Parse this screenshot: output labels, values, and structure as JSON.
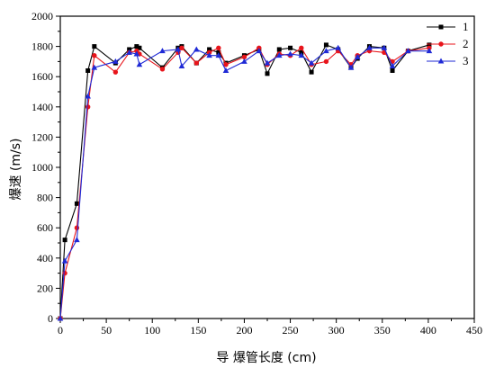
{
  "chart_data": {
    "type": "line",
    "xlabel": "导 爆管长度 (cm)",
    "ylabel": "爆速  (m/s)",
    "xlim": [
      0,
      450
    ],
    "ylim": [
      0,
      2000
    ],
    "xticks": [
      0,
      50,
      100,
      150,
      200,
      250,
      300,
      350,
      400,
      450
    ],
    "yticks": [
      0,
      200,
      400,
      600,
      800,
      1000,
      1200,
      1400,
      1600,
      1800,
      2000
    ],
    "grid": false,
    "legend_position": "top-right",
    "series": [
      {
        "name": "1",
        "color": "#000000",
        "marker": "square",
        "points": [
          [
            0,
            0
          ],
          [
            5,
            520
          ],
          [
            18,
            760
          ],
          [
            30,
            1640
          ],
          [
            37,
            1800
          ],
          [
            60,
            1690
          ],
          [
            75,
            1780
          ],
          [
            83,
            1800
          ],
          [
            86,
            1790
          ],
          [
            111,
            1660
          ],
          [
            128,
            1790
          ],
          [
            132,
            1800
          ],
          [
            148,
            1690
          ],
          [
            162,
            1780
          ],
          [
            172,
            1760
          ],
          [
            180,
            1690
          ],
          [
            200,
            1740
          ],
          [
            216,
            1780
          ],
          [
            225,
            1620
          ],
          [
            238,
            1780
          ],
          [
            250,
            1790
          ],
          [
            262,
            1760
          ],
          [
            273,
            1630
          ],
          [
            289,
            1810
          ],
          [
            302,
            1780
          ],
          [
            316,
            1660
          ],
          [
            323,
            1720
          ],
          [
            336,
            1800
          ],
          [
            352,
            1790
          ],
          [
            361,
            1640
          ],
          [
            378,
            1770
          ],
          [
            401,
            1810
          ]
        ]
      },
      {
        "name": "2",
        "color": "#e8141b",
        "marker": "circle",
        "points": [
          [
            0,
            0
          ],
          [
            5,
            300
          ],
          [
            18,
            600
          ],
          [
            30,
            1400
          ],
          [
            37,
            1740
          ],
          [
            60,
            1630
          ],
          [
            75,
            1760
          ],
          [
            83,
            1770
          ],
          [
            86,
            1750
          ],
          [
            111,
            1650
          ],
          [
            128,
            1760
          ],
          [
            132,
            1790
          ],
          [
            148,
            1690
          ],
          [
            162,
            1760
          ],
          [
            172,
            1790
          ],
          [
            180,
            1680
          ],
          [
            200,
            1730
          ],
          [
            216,
            1790
          ],
          [
            225,
            1680
          ],
          [
            238,
            1750
          ],
          [
            250,
            1740
          ],
          [
            262,
            1790
          ],
          [
            273,
            1680
          ],
          [
            289,
            1700
          ],
          [
            302,
            1770
          ],
          [
            316,
            1680
          ],
          [
            323,
            1740
          ],
          [
            336,
            1770
          ],
          [
            352,
            1760
          ],
          [
            361,
            1700
          ],
          [
            378,
            1770
          ],
          [
            401,
            1790
          ]
        ]
      },
      {
        "name": "3",
        "color": "#1f2ad6",
        "marker": "triangle",
        "points": [
          [
            0,
            0
          ],
          [
            5,
            380
          ],
          [
            18,
            520
          ],
          [
            30,
            1470
          ],
          [
            37,
            1660
          ],
          [
            60,
            1700
          ],
          [
            75,
            1760
          ],
          [
            83,
            1750
          ],
          [
            86,
            1680
          ],
          [
            111,
            1770
          ],
          [
            128,
            1780
          ],
          [
            132,
            1670
          ],
          [
            148,
            1780
          ],
          [
            162,
            1740
          ],
          [
            172,
            1740
          ],
          [
            180,
            1640
          ],
          [
            200,
            1700
          ],
          [
            216,
            1770
          ],
          [
            225,
            1690
          ],
          [
            238,
            1740
          ],
          [
            250,
            1750
          ],
          [
            262,
            1740
          ],
          [
            273,
            1690
          ],
          [
            289,
            1770
          ],
          [
            302,
            1790
          ],
          [
            316,
            1660
          ],
          [
            323,
            1730
          ],
          [
            336,
            1790
          ],
          [
            352,
            1790
          ],
          [
            361,
            1670
          ],
          [
            378,
            1770
          ],
          [
            401,
            1770
          ]
        ]
      }
    ]
  }
}
